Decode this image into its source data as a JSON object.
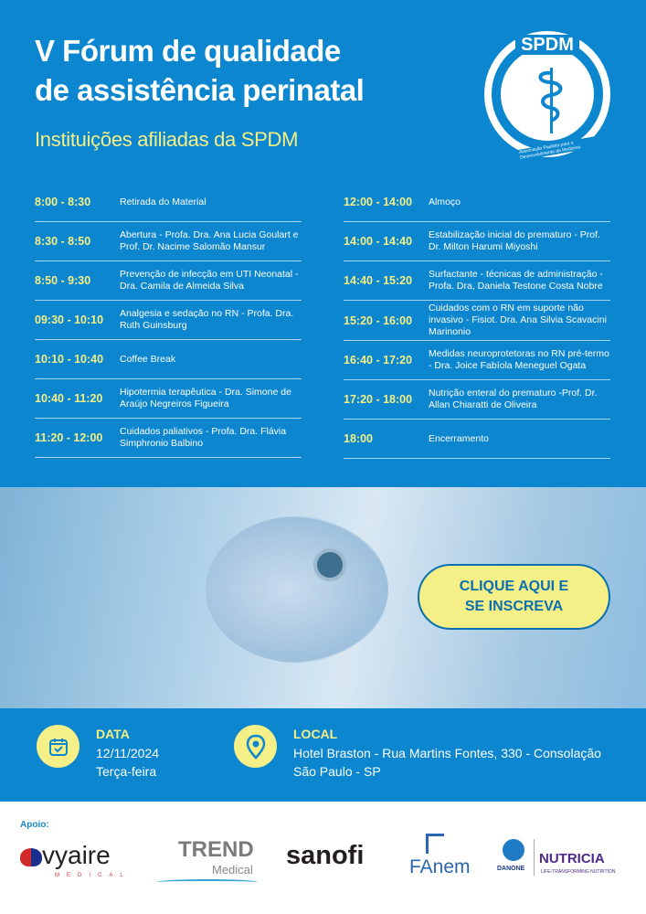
{
  "header": {
    "title_line1": "V Fórum de qualidade",
    "title_line2": "de assistência perinatal",
    "subtitle": "Instituições afiliadas da SPDM",
    "logo_text": "SPDM",
    "logo_subtext": "Associação Paulista para o Desenvolvimento da Medicina"
  },
  "schedule_left": [
    {
      "time": "8:00 - 8:30",
      "desc": "Retirada do Material"
    },
    {
      "time": "8:30 - 8:50",
      "desc": "Abertura - Profa. Dra. Ana Lucia Goulart e Prof. Dr. Nacime Salomão Mansur"
    },
    {
      "time": "8:50 - 9:30",
      "desc": "Prevenção de infecção em UTI Neonatal - Dra. Camila de Almeida Silva"
    },
    {
      "time": "09:30 - 10:10",
      "desc": "Analgesia e sedação no RN - Profa. Dra. Ruth Guinsburg"
    },
    {
      "time": "10:10 - 10:40",
      "desc": "Coffee Break"
    },
    {
      "time": "10:40 - 11:20",
      "desc": "Hipotermia terapêutica - Dra. Simone de Araújo Negreiros Figueira"
    },
    {
      "time": "11:20 - 12:00",
      "desc": "Cuidados paliativos - Profa. Dra. Flávia Simphronio Balbino"
    }
  ],
  "schedule_right": [
    {
      "time": "12:00 - 14:00",
      "desc": "Almoço"
    },
    {
      "time": "14:00 - 14:40",
      "desc": "Estabilização inicial do prematuro - Prof. Dr. Milton Harumi Miyoshi"
    },
    {
      "time": "14:40 - 15:20",
      "desc": "Surfactante - técnicas de administração - Profa. Dra, Daniela Testone Costa Nobre"
    },
    {
      "time": "15:20 - 16:00",
      "desc": "Cuidados com o RN em suporte não invasivo - Fisiot. Dra. Ana Silvia Scavacini Marinonio"
    },
    {
      "time": "16:40 - 17:20",
      "desc": "Medidas neuroprotetoras no RN pré-termo - Dra. Joice Fabíola Meneguel Ogata"
    },
    {
      "time": "17:20 - 18:00",
      "desc": "Nutrição enteral do prematuro -Prof. Dr. Allan Chiaratti de Oliveira"
    },
    {
      "time": "18:00",
      "desc": "Encerramento"
    }
  ],
  "cta": {
    "line1": "CLIQUE AQUI E",
    "line2": "SE INSCREVA"
  },
  "info": {
    "date_label": "DATA",
    "date": "12/11/2024",
    "weekday": "Terça-feira",
    "local_label": "LOCAL",
    "address": "Hotel Braston - Rua Martins Fontes, 330 - Consolação",
    "city": "São Paulo - SP"
  },
  "sponsors": {
    "label": "Apoio:",
    "items": [
      "vyaire",
      "MEDICAL",
      "TREND",
      "Medical",
      "sanofi",
      "FAnem",
      "DANONE",
      "NUTRICIA",
      "LIFE-TRANSFORMING NUTRITION"
    ]
  },
  "colors": {
    "brand_blue": "#0b86cf",
    "accent_yellow": "#f4ef86"
  }
}
